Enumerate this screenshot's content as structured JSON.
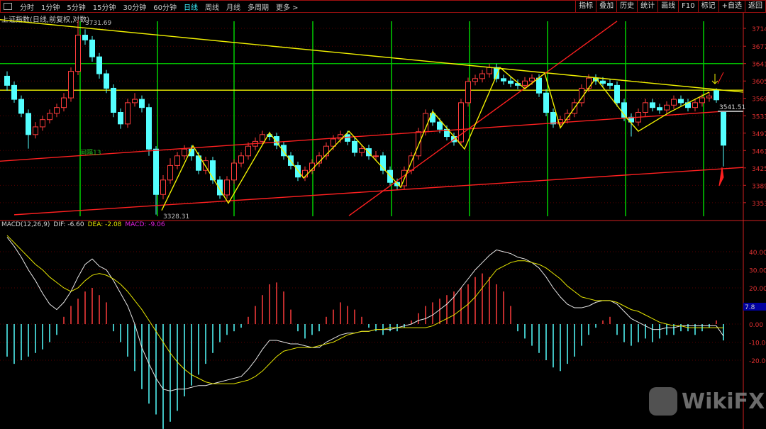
{
  "toolbar": {
    "tabs": [
      "分时",
      "1分钟",
      "5分钟",
      "15分钟",
      "30分钟",
      "60分钟",
      "日线",
      "周线",
      "月线",
      "多周期",
      "更多 >"
    ],
    "active": "日线",
    "right_buttons": [
      "指标",
      "叠加",
      "历史",
      "统计",
      "画线",
      "F10",
      "标记",
      "+自选",
      "返回"
    ]
  },
  "title": "上证指数(日线,前复权,对数)",
  "macd_label": {
    "name": "MACD(12,26,9)",
    "dif": "DIF: -6.60",
    "dea": "DEA: -2.08",
    "macd": "MACD: -9.06"
  },
  "watermark": "WikiFX",
  "colors": {
    "up": "#ff3c3c",
    "down": "#54ffff",
    "dif": "#e8e8e8",
    "dea": "#e6e600",
    "trend_yellow": "#f0f000",
    "trend_red": "#ff2020",
    "vline": "#00d000",
    "axis": "#d02020"
  },
  "chart_data": [
    {
      "type": "candlestick",
      "price_axis": {
        "ticks": [
          3714,
          3677,
          3641,
          3605,
          3569,
          3533,
          3497,
          3461,
          3425,
          3389,
          3353
        ],
        "range": [
          3335,
          3740
        ]
      },
      "annotations": {
        "high_label": "3731.69",
        "low_label": "3328.31",
        "last_label": "3541.51",
        "interval_label": "间隔13"
      },
      "candles": [
        [
          3615,
          3625,
          3585,
          3596
        ],
        [
          3596,
          3604,
          3560,
          3567
        ],
        [
          3567,
          3575,
          3530,
          3538
        ],
        [
          3538,
          3546,
          3465,
          3494
        ],
        [
          3494,
          3520,
          3486,
          3510
        ],
        [
          3510,
          3533,
          3502,
          3525
        ],
        [
          3525,
          3546,
          3517,
          3538
        ],
        [
          3538,
          3558,
          3530,
          3550
        ],
        [
          3550,
          3580,
          3542,
          3570
        ],
        [
          3570,
          3633,
          3562,
          3625
        ],
        [
          3625,
          3731.69,
          3617,
          3700
        ],
        [
          3700,
          3712,
          3680,
          3690
        ],
        [
          3690,
          3698,
          3645,
          3655
        ],
        [
          3655,
          3663,
          3610,
          3620
        ],
        [
          3620,
          3628,
          3580,
          3590
        ],
        [
          3590,
          3598,
          3530,
          3540
        ],
        [
          3540,
          3548,
          3506,
          3516
        ],
        [
          3516,
          3568,
          3508,
          3560
        ],
        [
          3560,
          3580,
          3552,
          3567
        ],
        [
          3567,
          3575,
          3540,
          3550
        ],
        [
          3550,
          3558,
          3450,
          3464
        ],
        [
          3464,
          3470,
          3328.31,
          3370
        ],
        [
          3370,
          3410,
          3360,
          3400
        ],
        [
          3400,
          3445,
          3392,
          3430
        ],
        [
          3430,
          3458,
          3422,
          3450
        ],
        [
          3450,
          3472,
          3442,
          3464
        ],
        [
          3464,
          3472,
          3440,
          3450
        ],
        [
          3450,
          3458,
          3412,
          3420
        ],
        [
          3420,
          3448,
          3412,
          3440
        ],
        [
          3440,
          3448,
          3392,
          3400
        ],
        [
          3400,
          3408,
          3361,
          3369
        ],
        [
          3369,
          3408,
          3361,
          3400
        ],
        [
          3400,
          3443,
          3392,
          3435
        ],
        [
          3435,
          3458,
          3427,
          3450
        ],
        [
          3450,
          3478,
          3442,
          3470
        ],
        [
          3470,
          3488,
          3462,
          3480
        ],
        [
          3480,
          3502,
          3472,
          3494
        ],
        [
          3494,
          3500,
          3482,
          3490
        ],
        [
          3490,
          3498,
          3464,
          3472
        ],
        [
          3472,
          3480,
          3442,
          3450
        ],
        [
          3450,
          3458,
          3422,
          3430
        ],
        [
          3430,
          3438,
          3398,
          3406
        ],
        [
          3406,
          3428,
          3398,
          3420
        ],
        [
          3420,
          3443,
          3412,
          3435
        ],
        [
          3435,
          3458,
          3427,
          3450
        ],
        [
          3450,
          3478,
          3442,
          3470
        ],
        [
          3470,
          3493,
          3462,
          3485
        ],
        [
          3485,
          3502,
          3477,
          3494
        ],
        [
          3494,
          3502,
          3472,
          3480
        ],
        [
          3480,
          3488,
          3449,
          3457
        ],
        [
          3457,
          3473,
          3449,
          3465
        ],
        [
          3465,
          3473,
          3442,
          3450
        ],
        [
          3450,
          3460,
          3440,
          3450
        ],
        [
          3450,
          3458,
          3412,
          3420
        ],
        [
          3420,
          3428,
          3387,
          3395
        ],
        [
          3395,
          3403,
          3380,
          3388
        ],
        [
          3388,
          3428,
          3380,
          3420
        ],
        [
          3420,
          3458,
          3412,
          3450
        ],
        [
          3450,
          3508,
          3442,
          3500
        ],
        [
          3500,
          3546,
          3492,
          3538
        ],
        [
          3538,
          3546,
          3512,
          3520
        ],
        [
          3520,
          3528,
          3497,
          3505
        ],
        [
          3505,
          3513,
          3482,
          3490
        ],
        [
          3490,
          3498,
          3471,
          3479
        ],
        [
          3479,
          3568,
          3471,
          3560
        ],
        [
          3560,
          3612,
          3552,
          3604
        ],
        [
          3604,
          3618,
          3596,
          3610
        ],
        [
          3610,
          3628,
          3602,
          3620
        ],
        [
          3620,
          3641,
          3612,
          3633
        ],
        [
          3633,
          3641,
          3602,
          3610
        ],
        [
          3610,
          3618,
          3597,
          3605
        ],
        [
          3605,
          3613,
          3592,
          3600
        ],
        [
          3600,
          3608,
          3588,
          3596
        ],
        [
          3596,
          3613,
          3588,
          3605
        ],
        [
          3605,
          3619,
          3597,
          3611
        ],
        [
          3611,
          3619,
          3572,
          3580
        ],
        [
          3580,
          3588,
          3532,
          3540
        ],
        [
          3540,
          3548,
          3508,
          3516
        ],
        [
          3516,
          3533,
          3508,
          3525
        ],
        [
          3525,
          3546,
          3517,
          3538
        ],
        [
          3538,
          3568,
          3530,
          3560
        ],
        [
          3560,
          3598,
          3552,
          3590
        ],
        [
          3590,
          3619,
          3582,
          3611
        ],
        [
          3611,
          3619,
          3597,
          3605
        ],
        [
          3605,
          3613,
          3592,
          3600
        ],
        [
          3600,
          3608,
          3588,
          3596
        ],
        [
          3596,
          3604,
          3552,
          3560
        ],
        [
          3560,
          3568,
          3522,
          3530
        ],
        [
          3530,
          3538,
          3490,
          3520
        ],
        [
          3520,
          3548,
          3512,
          3540
        ],
        [
          3540,
          3568,
          3532,
          3560
        ],
        [
          3560,
          3568,
          3542,
          3550
        ],
        [
          3550,
          3558,
          3537,
          3545
        ],
        [
          3545,
          3563,
          3537,
          3555
        ],
        [
          3555,
          3575,
          3547,
          3567
        ],
        [
          3567,
          3575,
          3552,
          3560
        ],
        [
          3560,
          3568,
          3542,
          3550
        ],
        [
          3550,
          3568,
          3542,
          3560
        ],
        [
          3560,
          3578,
          3552,
          3570
        ],
        [
          3570,
          3582,
          3562,
          3574
        ],
        [
          3585,
          3590,
          3560,
          3566
        ],
        [
          3541.51,
          3541.51,
          3428,
          3472
        ]
      ],
      "horizontal_lines": [
        {
          "price": 3641,
          "color": "#00d000"
        },
        {
          "price": 3586,
          "color": "#f0f000"
        }
      ],
      "vertical_lines_at_index": [
        10.3,
        21.2,
        32,
        43.1,
        54.2,
        65.2,
        76.2,
        87.2,
        98.2
      ],
      "trendlines": [
        {
          "from": [
            -1,
            3732
          ],
          "to": [
            103.8,
            3582
          ],
          "color": "#f0f000"
        },
        {
          "from": [
            -1,
            3439
          ],
          "to": [
            103.8,
            3545
          ],
          "color": "#ff2020"
        },
        {
          "from": [
            1,
            3328
          ],
          "to": [
            103.8,
            3426
          ],
          "color": "#ff2020"
        },
        {
          "from": [
            48.2,
            3326
          ],
          "to": [
            86,
            3729
          ],
          "color": "#ff2020"
        }
      ],
      "zigzag": [
        [
          21.8,
          3337
        ],
        [
          26.2,
          3471
        ],
        [
          31.2,
          3352
        ],
        [
          37,
          3498
        ],
        [
          41.8,
          3404
        ],
        [
          48.2,
          3501
        ],
        [
          55.5,
          3385
        ],
        [
          60,
          3542
        ],
        [
          64.5,
          3464
        ],
        [
          69.5,
          3633
        ],
        [
          73,
          3589
        ],
        [
          75.8,
          3621
        ],
        [
          78,
          3508
        ],
        [
          83,
          3611
        ],
        [
          87.5,
          3526
        ],
        [
          89,
          3501
        ],
        [
          93.5,
          3541
        ],
        [
          99,
          3582
        ]
      ]
    },
    {
      "type": "macd",
      "axis": {
        "ticks": [
          40,
          30,
          20,
          0,
          -10,
          -20
        ],
        "labels": [
          "40.00",
          "30.00",
          "20.00",
          "0.00",
          "-10.00",
          "-20.00"
        ]
      },
      "cursor_value": "7.8",
      "dif": [
        48,
        43,
        37,
        30,
        24,
        17,
        11,
        8,
        12,
        18,
        26,
        33,
        36,
        32,
        30,
        24,
        17,
        10,
        0,
        -13,
        -22,
        -30,
        -36,
        -37,
        -36,
        -36,
        -35,
        -34,
        -34,
        -33,
        -32,
        -31,
        -30,
        -29,
        -25,
        -20,
        -14,
        -9,
        -9,
        -10,
        -11,
        -11,
        -12,
        -13,
        -13,
        -10,
        -8,
        -6,
        -5,
        -5,
        -4,
        -4,
        -3,
        -3,
        -3,
        -2,
        -1,
        0,
        2,
        3,
        5,
        8,
        11,
        15,
        20,
        25,
        30,
        34,
        38,
        41,
        40,
        39,
        37,
        36,
        34,
        31,
        26,
        20,
        15,
        11,
        9,
        9,
        10,
        12,
        13,
        13,
        11,
        7,
        3,
        1,
        -1,
        -3,
        -3,
        -2,
        -2,
        -1,
        -1,
        -1,
        -1,
        -1,
        -1,
        -6.6
      ],
      "dea": [
        49,
        45,
        41,
        37,
        33,
        30,
        26,
        23,
        20,
        18,
        20,
        24,
        27,
        28,
        27,
        25,
        22,
        18,
        13,
        8,
        2,
        -4,
        -10,
        -16,
        -21,
        -25,
        -28,
        -30,
        -32,
        -33,
        -33,
        -33,
        -33,
        -32,
        -31,
        -29,
        -26,
        -22,
        -18,
        -15,
        -14,
        -13,
        -13,
        -13,
        -12,
        -11,
        -10,
        -8,
        -6,
        -5,
        -4,
        -4,
        -3,
        -3,
        -2,
        -2,
        -2,
        -2,
        -2,
        -2,
        -1,
        1,
        3,
        5,
        8,
        11,
        15,
        20,
        25,
        30,
        32,
        34,
        35,
        35,
        34,
        33,
        31,
        28,
        25,
        21,
        18,
        15,
        14,
        13,
        13,
        13,
        12,
        10,
        8,
        7,
        5,
        3,
        1,
        0,
        -1,
        -1,
        -2,
        -2,
        -2,
        -2,
        -2,
        -2.08
      ],
      "macd": [
        -18,
        -22,
        -20,
        -18,
        -16,
        -14,
        -10,
        -6,
        4,
        10,
        14,
        18,
        20,
        16,
        12,
        -4,
        -10,
        -18,
        -26,
        -36,
        -44,
        -50,
        -58,
        -54,
        -48,
        -40,
        -34,
        -28,
        -22,
        -16,
        -10,
        -6,
        -4,
        -2,
        4,
        10,
        16,
        22,
        23,
        18,
        8,
        -4,
        -8,
        -6,
        -4,
        4,
        8,
        12,
        10,
        8,
        4,
        -2,
        -4,
        -6,
        -4,
        -4,
        -2,
        2,
        6,
        10,
        12,
        14,
        16,
        18,
        20,
        22,
        26,
        28,
        26,
        22,
        18,
        10,
        -4,
        -8,
        -12,
        -16,
        -20,
        -24,
        -26,
        -22,
        -18,
        -12,
        -6,
        -2,
        2,
        4,
        -6,
        -10,
        -12,
        -10,
        -8,
        -10,
        -8,
        -6,
        -6,
        -4,
        -4,
        -6,
        -4,
        -2,
        2,
        -9.06
      ]
    }
  ]
}
